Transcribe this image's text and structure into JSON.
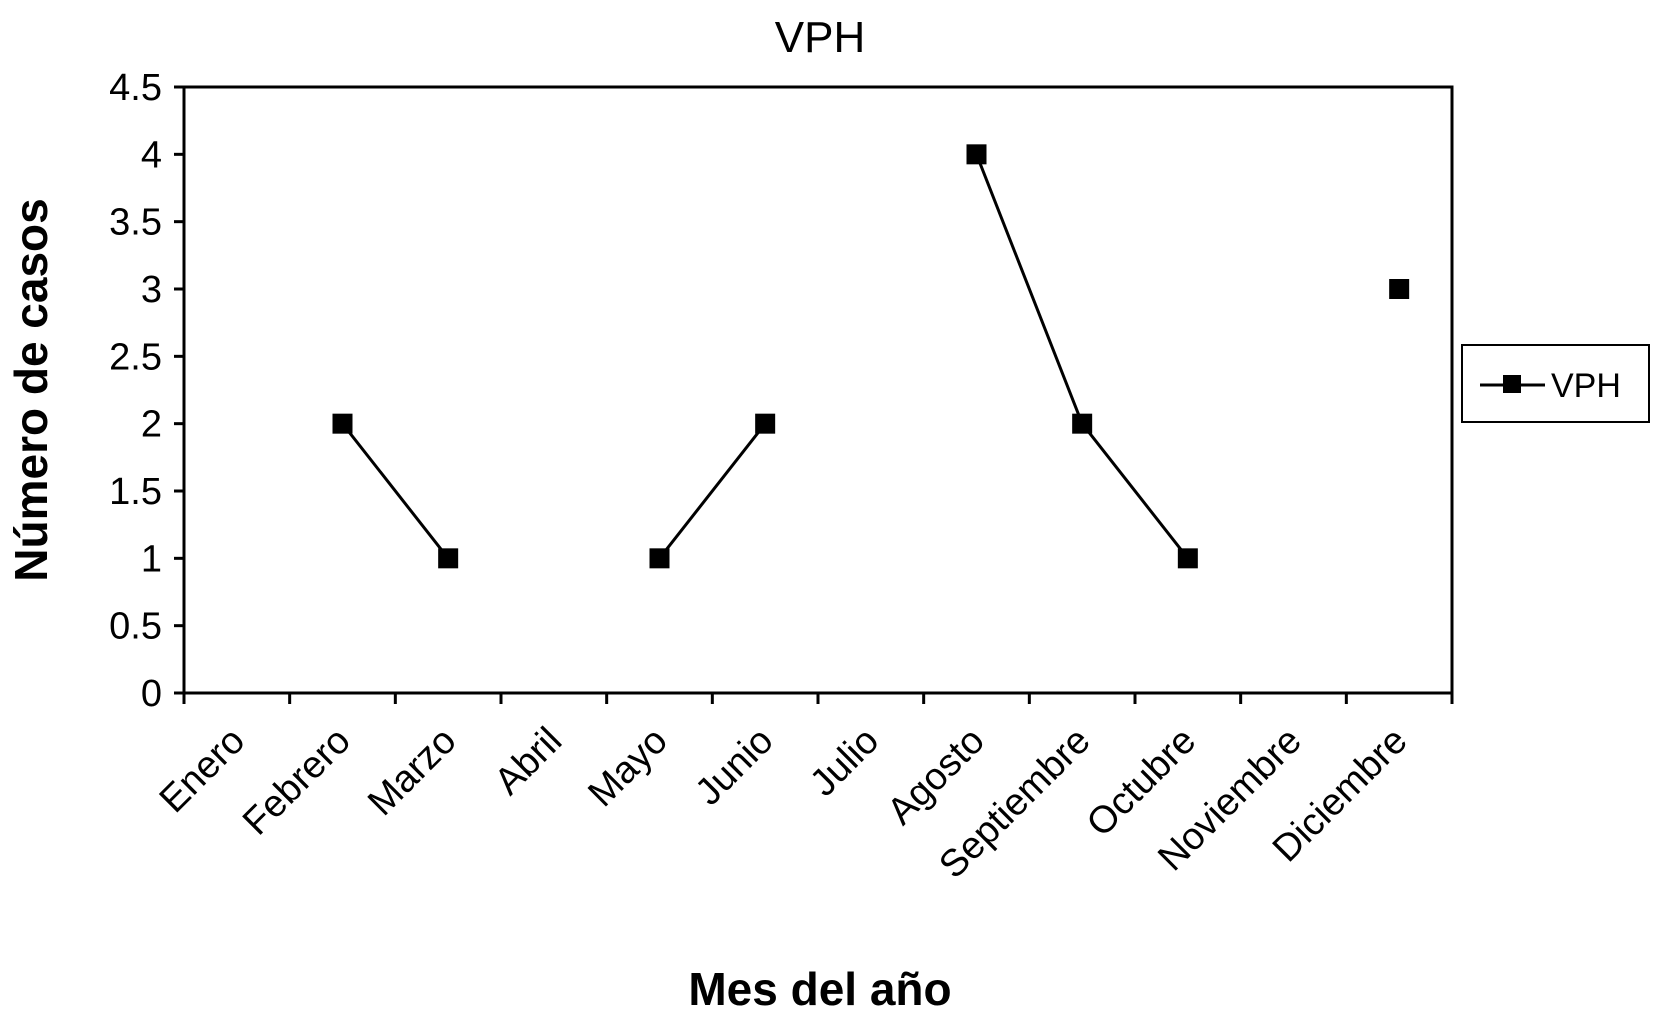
{
  "chart_data": {
    "type": "line",
    "title": "VPH",
    "xlabel": "Mes del año",
    "ylabel": "Número de casos",
    "categories": [
      "Enero",
      "Febrero",
      "Marzo",
      "Abril",
      "Mayo",
      "Junio",
      "Julio",
      "Agosto",
      "Septiembre",
      "Octubre",
      "Noviembre",
      "Diciembre"
    ],
    "series": [
      {
        "name": "VPH",
        "values": [
          null,
          2,
          1,
          null,
          1,
          2,
          null,
          4,
          2,
          1,
          null,
          3
        ],
        "color": "#000000",
        "marker": "square"
      }
    ],
    "ylim": [
      0,
      4.5
    ],
    "yticks": [
      "0",
      "0.5",
      "1",
      "1.5",
      "2",
      "2.5",
      "3",
      "3.5",
      "4",
      "4.5"
    ],
    "grid": false,
    "legend": "right"
  }
}
